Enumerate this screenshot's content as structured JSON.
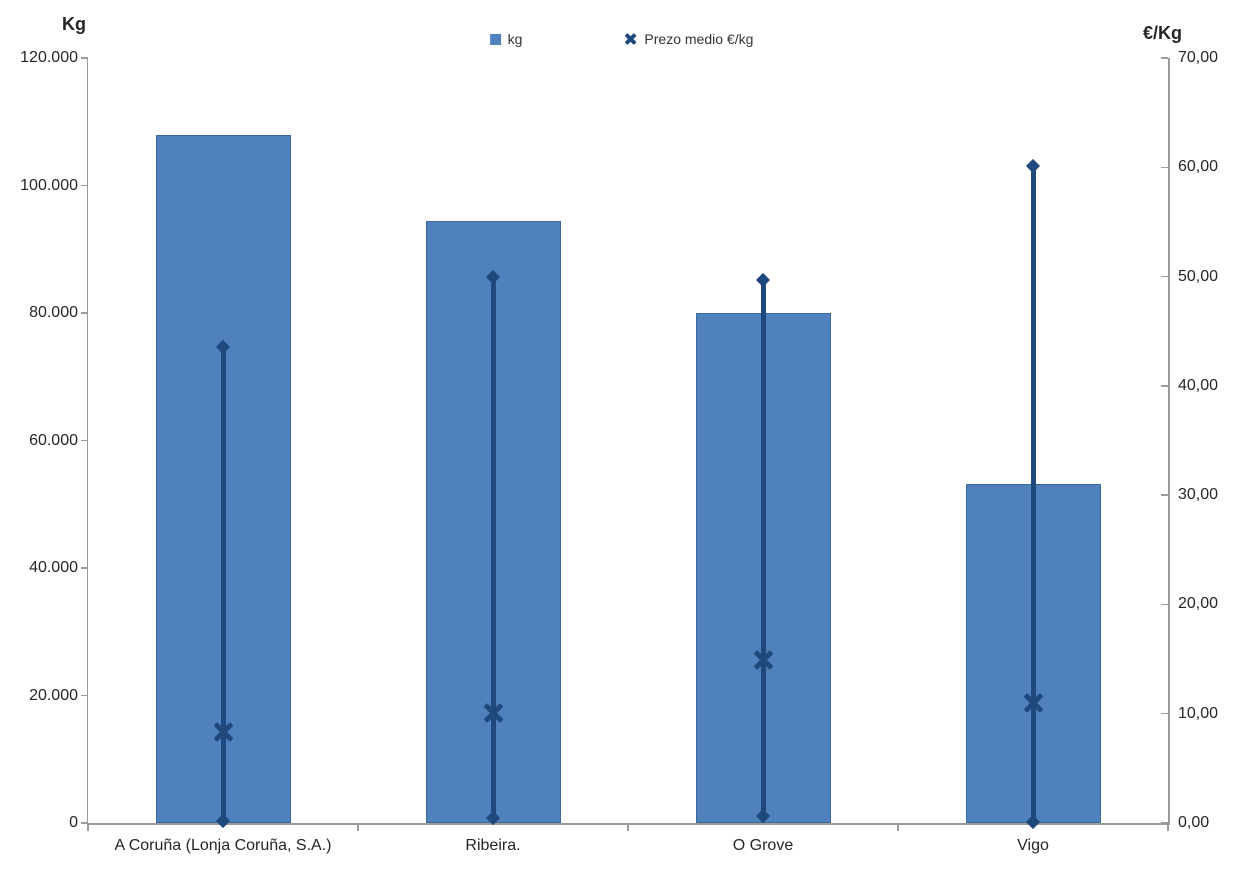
{
  "chart_data": {
    "type": "bar",
    "title": "",
    "categories": [
      "A Coruña (Lonja Coruña, S.A.)",
      "Ribeira.",
      "O Grove",
      "Vigo"
    ],
    "series": [
      {
        "name": "kg",
        "type": "bar",
        "axis": "left",
        "color": "#4F81BD",
        "values": [
          108000,
          94400,
          80000,
          53200
        ]
      },
      {
        "name": "Prezo medio €/kg",
        "type": "x-marker",
        "axis": "right",
        "color": "#1F497D",
        "values": [
          8.3,
          10.1,
          14.9,
          11.0
        ]
      }
    ],
    "high_low": {
      "axis": "right",
      "color": "#1F497D",
      "high": [
        43.6,
        50.0,
        49.7,
        60.1
      ],
      "low": [
        0.2,
        0.5,
        0.6,
        0.1
      ]
    },
    "left_axis": {
      "title": "Kg",
      "min": 0,
      "max": 120000,
      "tick_labels": [
        "120.000",
        "100.000",
        "80.000",
        "60.000",
        "40.000",
        "20.000",
        "0"
      ]
    },
    "right_axis": {
      "title": "€/Kg",
      "min": 0,
      "max": 70,
      "tick_labels": [
        "70,00",
        "60,00",
        "50,00",
        "40,00",
        "30,00",
        "20,00",
        "10,00",
        "0,00"
      ]
    },
    "legend": {
      "position": "top-center",
      "items": [
        {
          "label": "kg",
          "marker": "square",
          "color": "#4F81BD"
        },
        {
          "label": "Prezo medio €/kg",
          "marker": "x",
          "color": "#1F497D"
        }
      ]
    },
    "grid": false,
    "colors": {
      "bar": "#4F81BD",
      "line_marker": "#1F497D",
      "axis": "#9B9B9B",
      "text": "#262626",
      "background": "#FFFFFF"
    }
  }
}
